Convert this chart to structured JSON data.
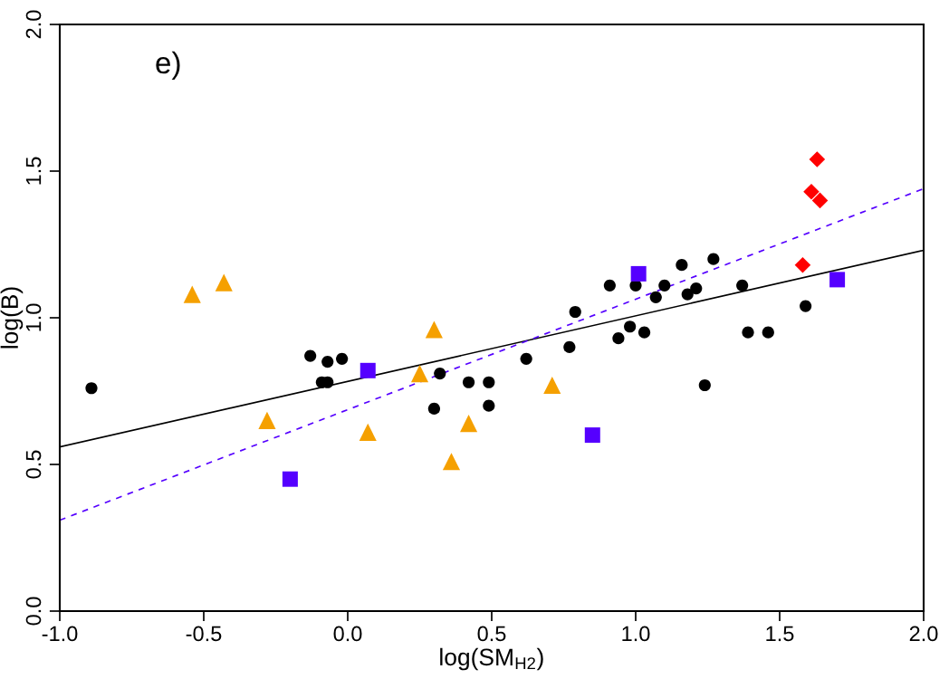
{
  "chart_data": {
    "type": "scatter",
    "xlabel": "log(SM$_{H2}$)",
    "ylabel": "log(B)",
    "xlim": [
      -1.0,
      2.0
    ],
    "ylim": [
      0.0,
      2.0
    ],
    "xticks": [
      {
        "value": -1.0,
        "label": "-1.0"
      },
      {
        "value": -0.5,
        "label": "-0.5"
      },
      {
        "value": 0.0,
        "label": "0.0"
      },
      {
        "value": 0.5,
        "label": "0.5"
      },
      {
        "value": 1.0,
        "label": "1.0"
      },
      {
        "value": 1.5,
        "label": "1.5"
      },
      {
        "value": 2.0,
        "label": "2.0"
      }
    ],
    "yticks": [
      {
        "value": 0.0,
        "label": "0.0"
      },
      {
        "value": 0.5,
        "label": "0.5"
      },
      {
        "value": 1.0,
        "label": "1.0"
      },
      {
        "value": 1.5,
        "label": "1.5"
      },
      {
        "value": 2.0,
        "label": "2.0"
      }
    ],
    "grid": false,
    "legend": false,
    "annotations": [
      "e)"
    ],
    "series": [
      {
        "marker": "circle",
        "color": "#000000",
        "x": [
          -0.89,
          -0.13,
          -0.07,
          -0.02,
          -0.09,
          -0.07,
          0.32,
          0.3,
          0.42,
          0.49,
          0.49,
          0.62,
          0.77,
          0.79,
          0.91,
          1.0,
          0.94,
          0.98,
          1.03,
          1.07,
          1.1,
          1.16,
          1.18,
          1.21,
          1.27,
          1.24,
          1.37,
          1.39,
          1.46,
          1.59
        ],
        "values": [
          0.76,
          0.87,
          0.85,
          0.86,
          0.78,
          0.78,
          0.81,
          0.69,
          0.78,
          0.78,
          0.7,
          0.86,
          0.9,
          1.02,
          1.11,
          1.11,
          0.93,
          0.97,
          0.95,
          1.07,
          1.11,
          1.18,
          1.08,
          1.1,
          1.2,
          0.77,
          1.11,
          0.95,
          0.95,
          1.04
        ]
      },
      {
        "marker": "triangle",
        "color": "#f5a000",
        "x": [
          -0.54,
          -0.43,
          -0.28,
          0.07,
          0.3,
          0.25,
          0.42,
          0.36,
          0.71
        ],
        "values": [
          1.08,
          1.12,
          0.65,
          0.61,
          0.96,
          0.81,
          0.64,
          0.51,
          0.77
        ]
      },
      {
        "marker": "square",
        "color": "#5500ff",
        "x": [
          0.07,
          -0.2,
          1.01,
          0.85,
          1.7
        ],
        "values": [
          0.82,
          0.45,
          1.15,
          0.6,
          1.13
        ]
      },
      {
        "marker": "diamond",
        "color": "#ff0000",
        "x": [
          1.63,
          1.61,
          1.64,
          1.58
        ],
        "values": [
          1.54,
          1.43,
          1.4,
          1.18
        ]
      },
      {
        "type": "line",
        "line_style": "solid",
        "color": "#000000",
        "x": [
          -1.0,
          2.0
        ],
        "values": [
          0.56,
          1.23
        ]
      },
      {
        "type": "line",
        "line_style": "dashed",
        "color": "#5500ff",
        "x": [
          -1.0,
          2.0
        ],
        "values": [
          0.31,
          1.44
        ]
      }
    ]
  }
}
